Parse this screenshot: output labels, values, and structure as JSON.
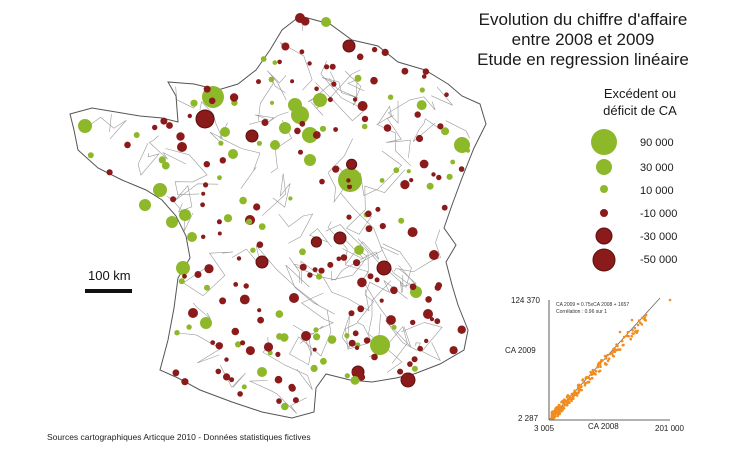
{
  "title": {
    "line1": "Evolution du chiffre d'affaire",
    "line2": "entre 2008 et 2009",
    "line3": "Etude en regression linéaire"
  },
  "legend": {
    "title_line1": "Excédent ou",
    "title_line2": "déficit de CA",
    "items": [
      {
        "label": "90 000",
        "value": 90000,
        "color": "#8db82a"
      },
      {
        "label": "30 000",
        "value": 30000,
        "color": "#8db82a"
      },
      {
        "label": "10 000",
        "value": 10000,
        "color": "#8db82a"
      },
      {
        "label": "-10 000",
        "value": -10000,
        "color": "#8b1a1a"
      },
      {
        "label": "-30 000",
        "value": -30000,
        "color": "#8b1a1a"
      },
      {
        "label": "-50 000",
        "value": -50000,
        "color": "#8b1a1a"
      }
    ]
  },
  "scale": {
    "label": "100 km"
  },
  "sources": "Sources cartographiques Articque 2010 - Données statistiques fictives",
  "inset": {
    "y_top": "124 370",
    "y_bottom": "2 287",
    "y_label": "CA 2009",
    "x_left": "3 005",
    "x_right": "201 000",
    "x_label": "CA 2008",
    "equation": "CA 2009 = 0.75xCA 2008 + 1657",
    "correlation": "Corrélation : 0.96 sur 1",
    "point_color": "#f28c1e"
  },
  "colors": {
    "positive": "#8db82a",
    "negative": "#8b1a1a",
    "boundary": "#999999"
  }
}
